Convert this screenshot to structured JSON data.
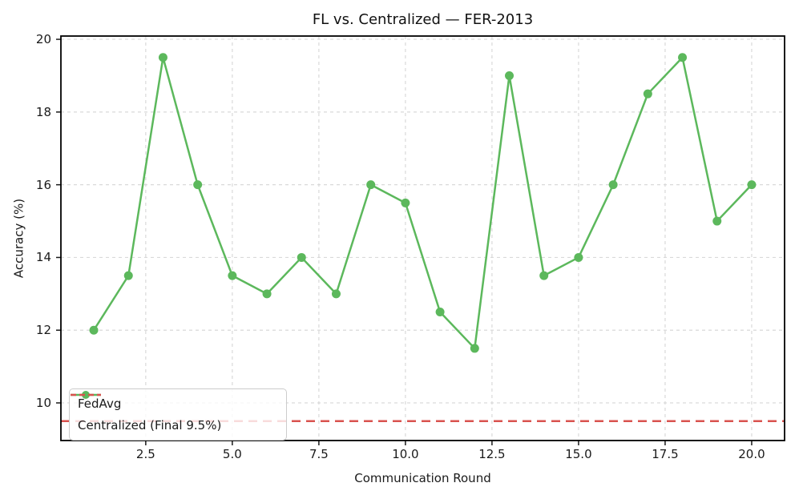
{
  "chart_data": {
    "type": "line",
    "title": "FL vs. Centralized — FER-2013",
    "xlabel": "Communication Round",
    "ylabel": "Accuracy (%)",
    "x": [
      1,
      2,
      3,
      4,
      5,
      6,
      7,
      8,
      9,
      10,
      11,
      12,
      13,
      14,
      15,
      16,
      17,
      18,
      19,
      20
    ],
    "series": [
      {
        "name": "FedAvg",
        "type": "line-markers",
        "color": "#5cb85c",
        "values": [
          12,
          13.5,
          19.5,
          16,
          13.5,
          13,
          14,
          13,
          16,
          15.5,
          12.5,
          11.5,
          19,
          13.5,
          14,
          16,
          18.5,
          19.5,
          15,
          16
        ]
      },
      {
        "name": "Centralized (Final 9.5%)",
        "type": "dashed-hline",
        "color": "#d9534f",
        "value": 9.5
      }
    ],
    "xticks": {
      "values": [
        2.5,
        5,
        7.5,
        10,
        12.5,
        15,
        17.5,
        20
      ],
      "labels": [
        "2.5",
        "5.0",
        "7.5",
        "10.0",
        "12.5",
        "15.0",
        "17.5",
        "20.0"
      ]
    },
    "yticks": {
      "values": [
        10,
        12,
        14,
        16,
        18,
        20
      ],
      "labels": [
        "10",
        "12",
        "14",
        "16",
        "18",
        "20"
      ]
    },
    "xlim": [
      0.05,
      20.95
    ],
    "ylim": [
      8.965,
      20.09
    ],
    "grid": true,
    "grid_style": "dashed",
    "legend_position": "lower left",
    "colors": {
      "fedavg": "#5cb85c",
      "centralized": "#d9534f",
      "grid": "#d9d9d9",
      "spine": "#000000"
    }
  }
}
